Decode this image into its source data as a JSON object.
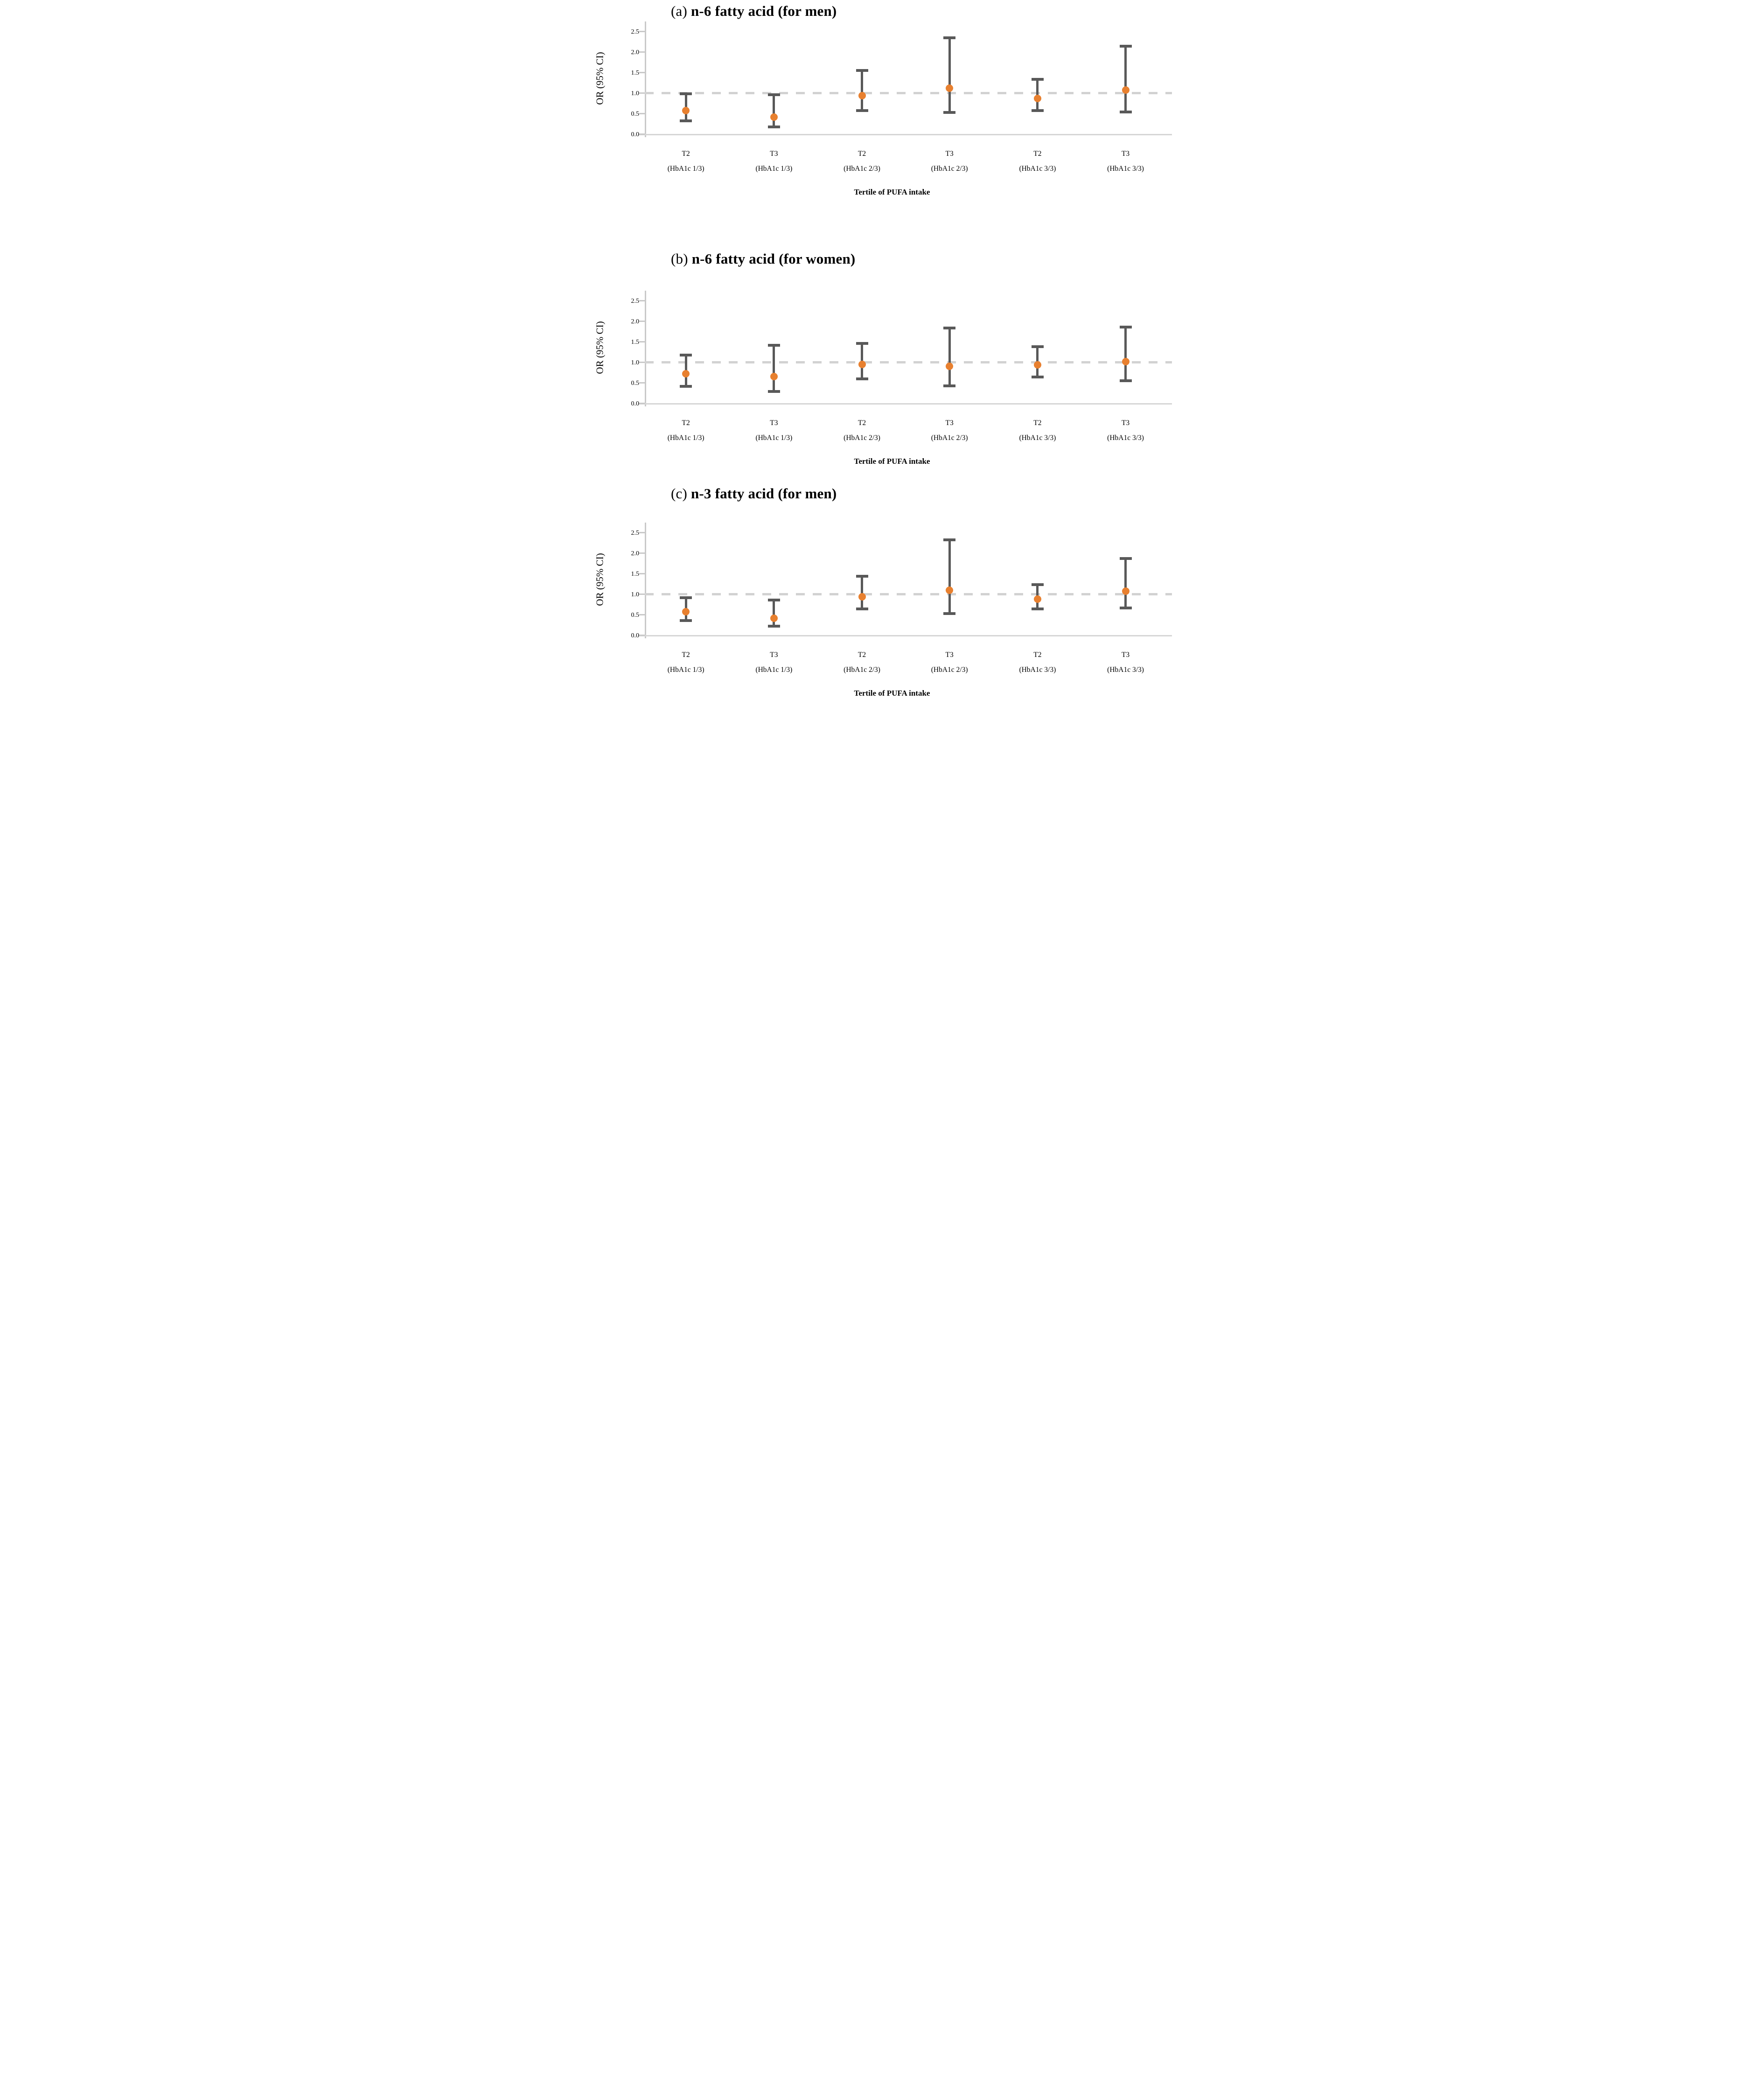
{
  "figure": {
    "y_axis_title": "OR (95% CI)",
    "x_axis_title": "Tertile of PUFA intake",
    "y_tick_labels": [
      "0.0",
      "0.5",
      "1.0",
      "1.5",
      "2.0",
      "2.5"
    ],
    "reference_line_value": 1.0,
    "colors": {
      "point": "#e8802f",
      "error_bar": "#595959",
      "reference_line": "#d2d2d2",
      "axis_line": "#c9c9c9",
      "text": "#000000"
    }
  },
  "chart_data": [
    {
      "type": "scatter",
      "subtype": "odds-ratio-error-bars",
      "title_prefix": "(a)",
      "title_main": "n-6 fatty acid (for men)",
      "xlabel": "Tertile of PUFA intake",
      "ylabel": "OR (95% CI)",
      "ylim": [
        0,
        2.73
      ],
      "yticks": [
        0.0,
        0.5,
        1.0,
        1.5,
        2.0,
        2.5
      ],
      "reference_line": 1.0,
      "grid": false,
      "legend": false,
      "categories": [
        [
          "T2",
          "(HbA1c 1/3)"
        ],
        [
          "T3",
          "(HbA1c 1/3)"
        ],
        [
          "T2",
          "(HbA1c 2/3)"
        ],
        [
          "T3",
          "(HbA1c 2/3)"
        ],
        [
          "T2",
          "(HbA1c 3/3)"
        ],
        [
          "T3",
          "(HbA1c 3/3)"
        ]
      ],
      "series": [
        {
          "name": "OR",
          "values": [
            0.57,
            0.42,
            0.94,
            1.12,
            0.87,
            1.08
          ],
          "ci_low": [
            0.33,
            0.18,
            0.57,
            0.53,
            0.58,
            0.54
          ],
          "ci_high": [
            0.98,
            0.96,
            1.55,
            2.35,
            1.34,
            2.14
          ]
        }
      ]
    },
    {
      "type": "scatter",
      "subtype": "odds-ratio-error-bars",
      "title_prefix": "(b)",
      "title_main": "n-6 fatty acid (for women)",
      "xlabel": "Tertile of PUFA intake",
      "ylabel": "OR (95% CI)",
      "ylim": [
        0,
        2.73
      ],
      "yticks": [
        0.0,
        0.5,
        1.0,
        1.5,
        2.0,
        2.5
      ],
      "reference_line": 1.0,
      "grid": false,
      "legend": false,
      "categories": [
        [
          "T2",
          "(HbA1c 1/3)"
        ],
        [
          "T3",
          "(HbA1c 1/3)"
        ],
        [
          "T2",
          "(HbA1c 2/3)"
        ],
        [
          "T3",
          "(HbA1c 2/3)"
        ],
        [
          "T2",
          "(HbA1c 3/3)"
        ],
        [
          "T3",
          "(HbA1c 3/3)"
        ]
      ],
      "series": [
        {
          "name": "OR",
          "values": [
            0.72,
            0.65,
            0.95,
            0.9,
            0.94,
            1.02
          ],
          "ci_low": [
            0.42,
            0.29,
            0.6,
            0.43,
            0.64,
            0.55
          ],
          "ci_high": [
            1.18,
            1.42,
            1.46,
            1.84,
            1.38,
            1.86
          ]
        }
      ]
    },
    {
      "type": "scatter",
      "subtype": "odds-ratio-error-bars",
      "title_prefix": "(c)",
      "title_main": "n-3 fatty acid (for men)",
      "xlabel": "Tertile of PUFA intake",
      "ylabel": "OR (95% CI)",
      "ylim": [
        0,
        2.73
      ],
      "yticks": [
        0.0,
        0.5,
        1.0,
        1.5,
        2.0,
        2.5
      ],
      "reference_line": 1.0,
      "grid": false,
      "legend": false,
      "categories": [
        [
          "T2",
          "(HbA1c 1/3)"
        ],
        [
          "T3",
          "(HbA1c 1/3)"
        ],
        [
          "T2",
          "(HbA1c 2/3)"
        ],
        [
          "T3",
          "(HbA1c 2/3)"
        ],
        [
          "T2",
          "(HbA1c 3/3)"
        ],
        [
          "T3",
          "(HbA1c 3/3)"
        ]
      ],
      "series": [
        {
          "name": "OR",
          "values": [
            0.57,
            0.42,
            0.94,
            1.1,
            0.88,
            1.08
          ],
          "ci_low": [
            0.36,
            0.22,
            0.64,
            0.53,
            0.64,
            0.67
          ],
          "ci_high": [
            0.92,
            0.86,
            1.44,
            2.32,
            1.24,
            1.87
          ]
        }
      ]
    }
  ]
}
